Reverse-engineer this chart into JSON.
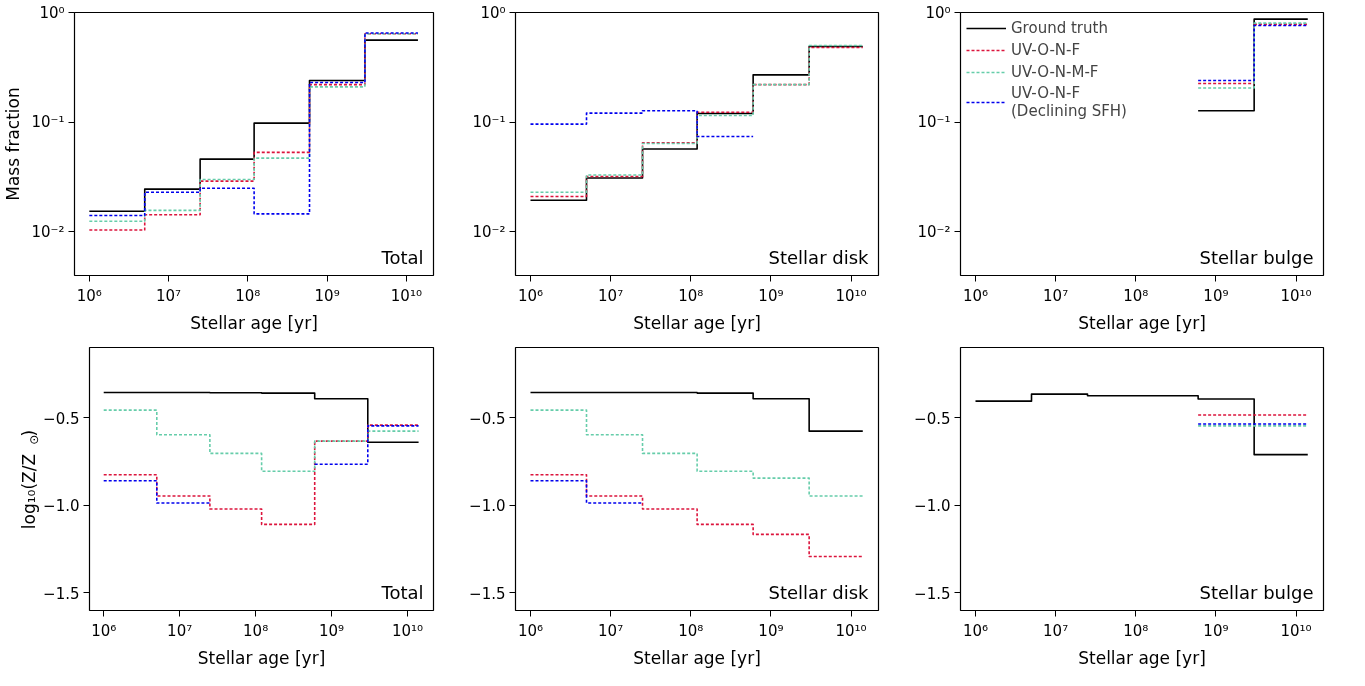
{
  "chart_data": [
    {
      "type": "step",
      "ylabel": "Mass fraction",
      "xlabel": "Stellar age [yr]",
      "log": "xy",
      "grid": false,
      "legend": false,
      "annotations": [
        "Total"
      ],
      "x": [
        1000000,
        5000000,
        25000000,
        120000000,
        600000000,
        3000000000,
        14000000000
      ],
      "xlim": [
        650000,
        22000000000
      ],
      "xticks": [
        {
          "value": 1000000,
          "label": "10⁶"
        },
        {
          "value": 10000000,
          "label": "10⁷"
        },
        {
          "value": 100000000,
          "label": "10⁸"
        },
        {
          "value": 1000000000,
          "label": "10⁹"
        },
        {
          "value": 10000000000,
          "label": "10¹⁰"
        }
      ],
      "ylim": [
        0.004,
        1
      ],
      "yticks": [
        {
          "value": 0.01,
          "label": "10⁻²"
        },
        {
          "value": 0.1,
          "label": "10⁻¹"
        },
        {
          "value": 1,
          "label": "10⁰"
        }
      ],
      "series": [
        {
          "color": "#000000",
          "line_style": "solid",
          "values": [
            0.0154,
            0.0245,
            0.046,
            0.098,
            0.24,
            0.56,
            0.56
          ]
        },
        {
          "color": "#dc143c",
          "line_style": "dashed",
          "values": [
            0.0104,
            0.0143,
            0.029,
            0.053,
            0.22,
            0.64,
            0.64
          ]
        },
        {
          "color": "#66cdaa",
          "line_style": "dashed",
          "values": [
            0.0125,
            0.0157,
            0.03,
            0.047,
            0.21,
            0.64,
            0.64
          ]
        },
        {
          "color": "#0000ee",
          "line_style": "dashed",
          "values": [
            0.0141,
            0.023,
            0.025,
            0.0146,
            0.23,
            0.65,
            0.65
          ]
        }
      ]
    },
    {
      "type": "step",
      "xlabel": "Stellar age [yr]",
      "log": "xy",
      "grid": false,
      "legend": false,
      "annotations": [
        "Stellar disk"
      ],
      "x": [
        1000000,
        5000000,
        25000000,
        120000000,
        600000000,
        3000000000,
        14000000000
      ],
      "xlim": [
        650000,
        22000000000
      ],
      "xticks": [
        {
          "value": 1000000,
          "label": "10⁶"
        },
        {
          "value": 10000000,
          "label": "10⁷"
        },
        {
          "value": 100000000,
          "label": "10⁸"
        },
        {
          "value": 1000000000,
          "label": "10⁹"
        },
        {
          "value": 10000000000,
          "label": "10¹⁰"
        }
      ],
      "ylim": [
        0.004,
        1
      ],
      "yticks": [
        {
          "value": 0.01,
          "label": "10⁻²"
        },
        {
          "value": 0.1,
          "label": "10⁻¹"
        },
        {
          "value": 1,
          "label": "10⁰"
        }
      ],
      "series": [
        {
          "color": "#000000",
          "line_style": "solid",
          "values": [
            0.0194,
            0.031,
            0.057,
            0.12,
            0.27,
            0.49,
            0.49
          ]
        },
        {
          "color": "#dc143c",
          "line_style": "dashed",
          "values": [
            0.021,
            0.032,
            0.065,
            0.123,
            0.22,
            0.48,
            0.48
          ]
        },
        {
          "color": "#66cdaa",
          "line_style": "dashed",
          "values": [
            0.023,
            0.033,
            0.064,
            0.115,
            0.22,
            0.5,
            0.5
          ]
        },
        {
          "color": "#0000ee",
          "line_style": "dashed",
          "x": [
            1000000,
            5000000,
            25000000,
            120000000,
            600000000
          ],
          "values": [
            0.096,
            0.121,
            0.127,
            0.074,
            0.074
          ]
        }
      ]
    },
    {
      "type": "step",
      "xlabel": "Stellar age [yr]",
      "log": "xy",
      "grid": false,
      "legend": "top left",
      "annotations": [
        "Stellar bulge"
      ],
      "xlim": [
        650000,
        22000000000
      ],
      "xticks": [
        {
          "value": 1000000,
          "label": "10⁶"
        },
        {
          "value": 10000000,
          "label": "10⁷"
        },
        {
          "value": 100000000,
          "label": "10⁸"
        },
        {
          "value": 1000000000,
          "label": "10⁹"
        },
        {
          "value": 10000000000,
          "label": "10¹⁰"
        }
      ],
      "ylim": [
        0.004,
        1
      ],
      "yticks": [
        {
          "value": 0.01,
          "label": "10⁻²"
        },
        {
          "value": 0.1,
          "label": "10⁻¹"
        },
        {
          "value": 1,
          "label": "10⁰"
        }
      ],
      "series": [
        {
          "name": "Ground truth",
          "color": "#000000",
          "line_style": "solid",
          "x": [
            600000000,
            3000000000,
            14000000000
          ],
          "values": [
            0.127,
            0.87,
            0.87
          ]
        },
        {
          "name": "UV-O-N-F",
          "color": "#dc143c",
          "line_style": "dashed",
          "x": [
            600000000,
            3000000000,
            14000000000
          ],
          "values": [
            0.225,
            0.78,
            0.78
          ]
        },
        {
          "name": "UV-O-N-M-F",
          "color": "#66cdaa",
          "line_style": "dashed",
          "x": [
            600000000,
            3000000000,
            14000000000
          ],
          "values": [
            0.205,
            0.8,
            0.8
          ]
        },
        {
          "name": "UV-O-N-F\n(Declining SFH)",
          "color": "#0000ee",
          "line_style": "dashed",
          "x": [
            600000000,
            3000000000,
            14000000000
          ],
          "values": [
            0.24,
            0.76,
            0.76
          ]
        }
      ]
    },
    {
      "type": "step",
      "ylabel": "log₁₀(Z/Z$_{⊙}$)",
      "xlabel": "Stellar age [yr]",
      "log": "x",
      "grid": false,
      "legend": false,
      "annotations": [
        "Total"
      ],
      "x": [
        1000000,
        5000000,
        25000000,
        120000000,
        600000000,
        3000000000,
        14000000000
      ],
      "xlim": [
        650000,
        22000000000
      ],
      "xticks": [
        {
          "value": 1000000,
          "label": "10⁶"
        },
        {
          "value": 10000000,
          "label": "10⁷"
        },
        {
          "value": 100000000,
          "label": "10⁸"
        },
        {
          "value": 1000000000,
          "label": "10⁹"
        },
        {
          "value": 10000000000,
          "label": "10¹⁰"
        }
      ],
      "ylim": [
        -1.6,
        -0.1
      ],
      "yticks": [
        {
          "value": -1.5,
          "label": "−1.5"
        },
        {
          "value": -1.0,
          "label": "−1.0"
        },
        {
          "value": -0.5,
          "label": "−0.5"
        }
      ],
      "series": [
        {
          "color": "#000000",
          "line_style": "solid",
          "values": [
            -0.357,
            -0.357,
            -0.358,
            -0.36,
            -0.392,
            -0.64,
            -0.64
          ]
        },
        {
          "color": "#dc143c",
          "line_style": "dashed",
          "values": [
            -0.826,
            -0.947,
            -1.021,
            -1.109,
            -0.634,
            -0.543,
            -0.543
          ]
        },
        {
          "color": "#66cdaa",
          "line_style": "dashed",
          "values": [
            -0.457,
            -0.598,
            -0.704,
            -0.806,
            -0.634,
            -0.577,
            -0.577
          ]
        },
        {
          "color": "#0000ee",
          "line_style": "dashed",
          "values": [
            -0.86,
            -0.987,
            null,
            null,
            -0.766,
            -0.547,
            -0.547
          ]
        }
      ]
    },
    {
      "type": "step",
      "xlabel": "Stellar age [yr]",
      "log": "x",
      "grid": false,
      "legend": false,
      "annotations": [
        "Stellar disk"
      ],
      "x": [
        1000000,
        5000000,
        25000000,
        120000000,
        600000000,
        3000000000,
        14000000000
      ],
      "xlim": [
        650000,
        22000000000
      ],
      "xticks": [
        {
          "value": 1000000,
          "label": "10⁶"
        },
        {
          "value": 10000000,
          "label": "10⁷"
        },
        {
          "value": 100000000,
          "label": "10⁸"
        },
        {
          "value": 1000000000,
          "label": "10⁹"
        },
        {
          "value": 10000000000,
          "label": "10¹⁰"
        }
      ],
      "ylim": [
        -1.6,
        -0.1
      ],
      "yticks": [
        {
          "value": -1.5,
          "label": "−1.5"
        },
        {
          "value": -1.0,
          "label": "−1.0"
        },
        {
          "value": -0.5,
          "label": "−0.5"
        }
      ],
      "series": [
        {
          "color": "#000000",
          "line_style": "solid",
          "values": [
            -0.357,
            -0.357,
            -0.357,
            -0.36,
            -0.392,
            -0.577,
            -0.577
          ]
        },
        {
          "color": "#dc143c",
          "line_style": "dashed",
          "values": [
            -0.826,
            -0.947,
            -1.021,
            -1.109,
            -1.166,
            -1.292,
            -1.292
          ]
        },
        {
          "color": "#66cdaa",
          "line_style": "dashed",
          "values": [
            -0.457,
            -0.598,
            -0.704,
            -0.806,
            -0.845,
            -0.947,
            -0.947
          ]
        },
        {
          "color": "#0000ee",
          "line_style": "dashed",
          "x": [
            1000000,
            5000000,
            25000000
          ],
          "values": [
            -0.86,
            -0.987,
            -0.987
          ]
        }
      ]
    },
    {
      "type": "step",
      "xlabel": "Stellar age [yr]",
      "log": "x",
      "grid": false,
      "legend": false,
      "annotations": [
        "Stellar bulge"
      ],
      "x": [
        1000000,
        5000000,
        25000000,
        120000000,
        600000000,
        3000000000,
        14000000000
      ],
      "xlim": [
        650000,
        22000000000
      ],
      "xticks": [
        {
          "value": 1000000,
          "label": "10⁶"
        },
        {
          "value": 10000000,
          "label": "10⁷"
        },
        {
          "value": 100000000,
          "label": "10⁸"
        },
        {
          "value": 1000000000,
          "label": "10⁹"
        },
        {
          "value": 10000000000,
          "label": "10¹⁰"
        }
      ],
      "ylim": [
        -1.6,
        -0.1
      ],
      "yticks": [
        {
          "value": -1.5,
          "label": "−1.5"
        },
        {
          "value": -1.0,
          "label": "−1.0"
        },
        {
          "value": -0.5,
          "label": "−0.5"
        }
      ],
      "series": [
        {
          "color": "#000000",
          "line_style": "solid",
          "values": [
            -0.406,
            -0.366,
            -0.375,
            -0.375,
            -0.394,
            -0.711,
            -0.711
          ]
        },
        {
          "color": "#dc143c",
          "line_style": "dashed",
          "values": [
            null,
            null,
            null,
            null,
            -0.485,
            -0.485,
            -0.485
          ]
        },
        {
          "color": "#66cdaa",
          "line_style": "dashed",
          "values": [
            null,
            null,
            null,
            null,
            -0.547,
            -0.547,
            -0.547
          ]
        },
        {
          "color": "#0000ee",
          "line_style": "dashed",
          "values": [
            null,
            null,
            null,
            null,
            -0.536,
            -0.536,
            -0.536
          ]
        }
      ]
    }
  ]
}
